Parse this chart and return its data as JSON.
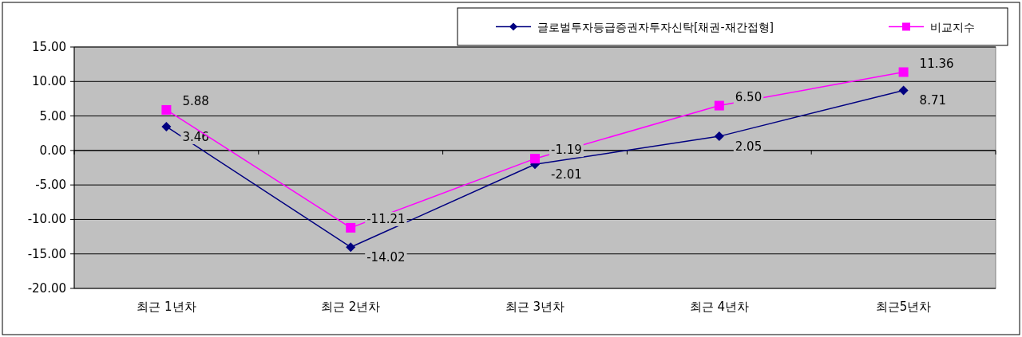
{
  "chart_data": {
    "type": "line",
    "categories": [
      "최근 1년차",
      "최근 2년차",
      "최근 3년차",
      "최근 4년차",
      "최근5년차"
    ],
    "series": [
      {
        "name": "글로벌투자등급증권자투자신탁[채권-재간접형]",
        "color": "#000080",
        "marker": "diamond",
        "values": [
          3.46,
          -14.02,
          -2.01,
          2.05,
          8.71
        ],
        "value_labels": [
          "3.46",
          "-14.02",
          "-2.01",
          "2.05",
          "8.71"
        ]
      },
      {
        "name": "비교지수",
        "color": "#ff00ff",
        "marker": "square",
        "values": [
          5.88,
          -11.21,
          -1.19,
          6.5,
          11.36
        ],
        "value_labels": [
          "5.88",
          "-11.21",
          "-1.19",
          "6.50",
          "11.36"
        ]
      }
    ],
    "ylim": [
      -20,
      15
    ],
    "yticks": [
      {
        "value": -20,
        "label": "-20.00"
      },
      {
        "value": -15,
        "label": "-15.00"
      },
      {
        "value": -10,
        "label": "-10.00"
      },
      {
        "value": -5,
        "label": "-5.00"
      },
      {
        "value": 0,
        "label": "0.00"
      },
      {
        "value": 5,
        "label": "5.00"
      },
      {
        "value": 10,
        "label": "10.00"
      },
      {
        "value": 15,
        "label": "15.00"
      }
    ],
    "grid": "y",
    "legend": "top right",
    "line_style": "solid"
  }
}
